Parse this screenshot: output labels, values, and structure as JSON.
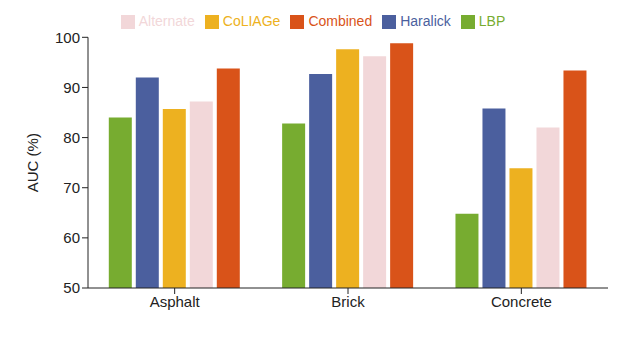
{
  "chart_data": {
    "type": "bar",
    "y_label": "AUC (%)",
    "categories": [
      "Asphalt",
      "Brick",
      "Concrete"
    ],
    "series": [
      {
        "name": "LBP",
        "color": "#77ac30",
        "values": [
          84,
          82.8,
          64.8
        ]
      },
      {
        "name": "Haralick",
        "color": "#4b5f9e",
        "values": [
          92,
          92.7,
          85.8
        ]
      },
      {
        "name": "CoLIAGe",
        "color": "#edb120",
        "values": [
          85.7,
          97.6,
          73.9
        ]
      },
      {
        "name": "Alternate",
        "color": "#f2d7d9",
        "values": [
          87.2,
          96.2,
          82
        ]
      },
      {
        "name": "Combined",
        "color": "#d95319",
        "values": [
          93.8,
          98.8,
          93.4
        ]
      }
    ],
    "ylim": [
      50,
      100
    ],
    "yticks": [
      50,
      60,
      70,
      80,
      90,
      100
    ],
    "grid": false,
    "legend": "top"
  }
}
